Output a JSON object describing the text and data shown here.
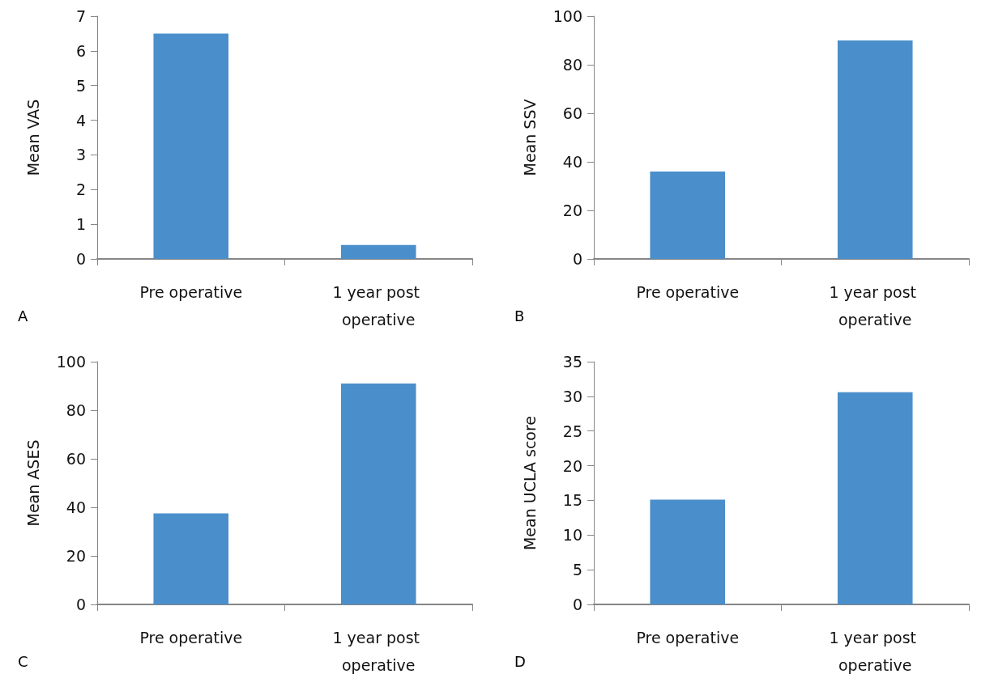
{
  "chart_data": [
    {
      "type": "bar",
      "categories": [
        "Pre operative",
        "1 year post operative"
      ],
      "values": [
        6.5,
        0.4
      ],
      "color": "#4a8fcb",
      "ylabel": "Mean VAS",
      "ylim": [
        0,
        7
      ],
      "yticks": [
        0,
        1,
        2,
        3,
        4,
        5,
        6,
        7
      ],
      "grid": false,
      "annotations": [
        "A"
      ]
    },
    {
      "type": "bar",
      "categories": [
        "Pre operative",
        "1 year post operative"
      ],
      "values": [
        36,
        90
      ],
      "color": "#4a8fcb",
      "ylabel": "Mean SSV",
      "ylim": [
        0,
        100
      ],
      "yticks": [
        0,
        20,
        40,
        60,
        80,
        100
      ],
      "grid": false,
      "annotations": [
        "B"
      ]
    },
    {
      "type": "bar",
      "categories": [
        "Pre operative",
        "1 year post operative"
      ],
      "values": [
        37.5,
        91
      ],
      "color": "#4a8fcb",
      "ylabel": "Mean ASES",
      "ylim": [
        0,
        100
      ],
      "yticks": [
        0,
        20,
        40,
        60,
        80,
        100
      ],
      "grid": false,
      "annotations": [
        "C"
      ]
    },
    {
      "type": "bar",
      "categories": [
        "Pre operative",
        "1 year post operative"
      ],
      "values": [
        15.1,
        30.6
      ],
      "color": "#4a8fcb",
      "ylabel": "Mean UCLA score",
      "ylim": [
        0,
        35
      ],
      "yticks": [
        0,
        5,
        10,
        15,
        20,
        25,
        30,
        35
      ],
      "grid": false,
      "annotations": [
        "D"
      ]
    }
  ]
}
